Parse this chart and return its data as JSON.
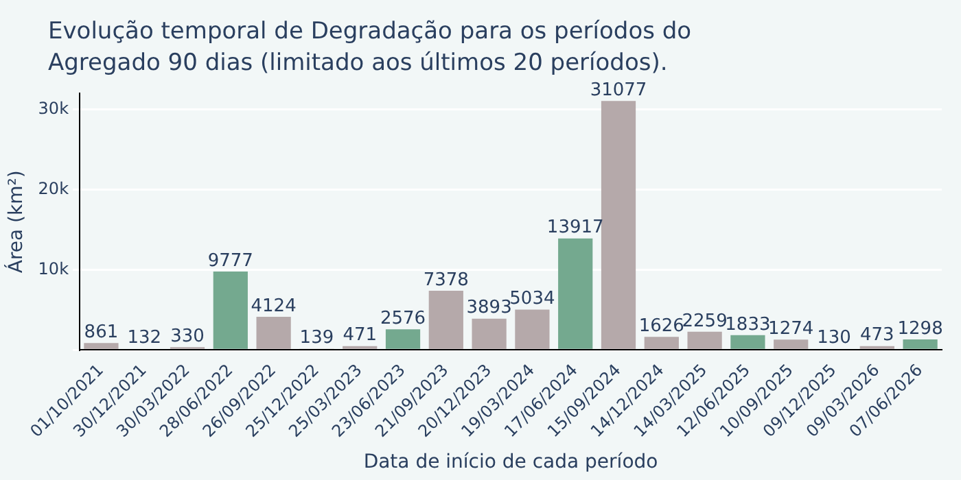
{
  "chart_data": {
    "type": "bar",
    "title": "Evolução temporal de Degradação para os períodos do Agregado 90 dias (limitado aos últimos 20 períodos).",
    "xlabel": "Data de início de cada período",
    "ylabel": "Área (km²)",
    "categories": [
      "01/10/2021",
      "30/12/2021",
      "30/03/2022",
      "28/06/2022",
      "26/09/2022",
      "25/12/2022",
      "25/03/2023",
      "23/06/2023",
      "21/09/2023",
      "20/12/2023",
      "19/03/2024",
      "17/06/2024",
      "15/09/2024",
      "14/12/2024",
      "14/03/2025",
      "12/06/2025",
      "10/09/2025",
      "09/12/2025",
      "09/03/2026",
      "07/06/2026"
    ],
    "values": [
      861,
      132,
      330,
      9777,
      4124,
      139,
      471,
      2576,
      7378,
      3893,
      5034,
      13917,
      31077,
      1626,
      2259,
      1833,
      1274,
      130,
      473,
      1298
    ],
    "colors": [
      "#b5a9aa",
      "#b5a9aa",
      "#b5a9aa",
      "#74a98f",
      "#b5a9aa",
      "#b5a9aa",
      "#b5a9aa",
      "#74a98f",
      "#b5a9aa",
      "#b5a9aa",
      "#b5a9aa",
      "#74a98f",
      "#b5a9aa",
      "#b5a9aa",
      "#b5a9aa",
      "#74a98f",
      "#b5a9aa",
      "#b5a9aa",
      "#b5a9aa",
      "#74a98f"
    ],
    "ylim": [
      0,
      32000
    ],
    "yticks": [
      {
        "value": 0,
        "label": null
      },
      {
        "value": 10000,
        "label": "10k"
      },
      {
        "value": 20000,
        "label": "20k"
      },
      {
        "value": 30000,
        "label": "30k"
      }
    ],
    "grid": "y",
    "data_labels": true,
    "legend": false
  }
}
